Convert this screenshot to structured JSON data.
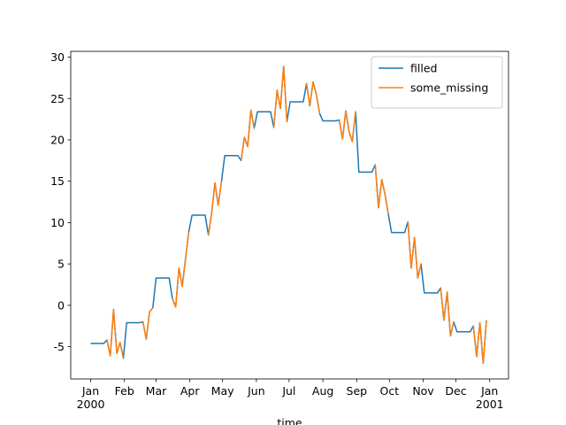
{
  "chart_data": {
    "type": "line",
    "xlabel": "time",
    "x": [
      0,
      3,
      6,
      9,
      12,
      15,
      18,
      21,
      24,
      27,
      30,
      33,
      36,
      39,
      42,
      45,
      48,
      51,
      54,
      57,
      60,
      63,
      66,
      69,
      72,
      75,
      78,
      81,
      84,
      87,
      90,
      93,
      96,
      99,
      102,
      105,
      108,
      111,
      114,
      117,
      120,
      123,
      126,
      129,
      132,
      135,
      138,
      141,
      144,
      147,
      150,
      153,
      156,
      159,
      162,
      165,
      168,
      171,
      174,
      177,
      180,
      183,
      186,
      189,
      192,
      195,
      198,
      201,
      204,
      207,
      210,
      213,
      216,
      219,
      222,
      225,
      228,
      231,
      234,
      237,
      240,
      243,
      246,
      249,
      252,
      255,
      258,
      261,
      264,
      267,
      270,
      273,
      276,
      279,
      282,
      285,
      288,
      291,
      294,
      297,
      300,
      303,
      306,
      309,
      312,
      315,
      318,
      321,
      324,
      327,
      330,
      333,
      336,
      339,
      342,
      345,
      348,
      351,
      354,
      357,
      360,
      363
    ],
    "series": [
      {
        "name": "filled",
        "color": "#1f77b4",
        "values": [
          -4.6,
          -4.6,
          -4.6,
          -4.6,
          -4.6,
          -4.2,
          -6.1,
          -0.5,
          -5.8,
          -4.5,
          -6.4,
          -2.1,
          -2.1,
          -2.1,
          -2.1,
          -2.1,
          -2.0,
          -4.1,
          -0.8,
          -0.3,
          3.3,
          3.3,
          3.3,
          3.3,
          3.3,
          0.8,
          -0.2,
          4.5,
          2.3,
          5.6,
          8.9,
          10.9,
          10.9,
          10.9,
          10.9,
          10.9,
          8.5,
          11.2,
          14.8,
          12.1,
          15.0,
          18.1,
          18.1,
          18.1,
          18.1,
          18.1,
          17.5,
          20.3,
          19.2,
          23.6,
          21.4,
          23.4,
          23.4,
          23.4,
          23.4,
          23.4,
          21.5,
          26.0,
          23.8,
          28.9,
          22.2,
          24.6,
          24.6,
          24.6,
          24.6,
          24.6,
          26.8,
          24.1,
          27.0,
          25.5,
          23.2,
          22.3,
          22.3,
          22.3,
          22.3,
          22.3,
          22.4,
          20.1,
          23.5,
          21.0,
          19.8,
          23.4,
          16.1,
          16.1,
          16.1,
          16.1,
          16.1,
          17.0,
          11.8,
          15.2,
          13.4,
          11.0,
          8.8,
          8.8,
          8.8,
          8.8,
          8.8,
          10.1,
          4.5,
          8.2,
          3.3,
          5.0,
          1.5,
          1.5,
          1.5,
          1.5,
          1.5,
          2.1,
          -1.8,
          1.6,
          -3.7,
          -2.0,
          -3.2,
          -3.2,
          -3.2,
          -3.2,
          -3.2,
          -2.5,
          -6.2,
          -2.1,
          -7.0,
          -1.8
        ]
      },
      {
        "name": "some_missing",
        "color": "#ff7f0e",
        "values": [
          null,
          null,
          null,
          null,
          null,
          -4.2,
          -6.1,
          -0.5,
          -5.8,
          -4.5,
          -6.4,
          null,
          null,
          null,
          null,
          null,
          -2.0,
          -4.1,
          -0.8,
          -0.3,
          null,
          null,
          null,
          null,
          null,
          0.8,
          -0.2,
          4.5,
          2.3,
          5.6,
          8.9,
          null,
          null,
          null,
          null,
          null,
          8.5,
          11.2,
          14.8,
          12.1,
          15.0,
          null,
          null,
          null,
          null,
          null,
          17.5,
          20.3,
          19.2,
          23.6,
          21.4,
          null,
          null,
          null,
          null,
          null,
          21.5,
          26.0,
          23.8,
          28.9,
          22.2,
          null,
          null,
          null,
          null,
          null,
          26.8,
          24.1,
          27.0,
          25.5,
          23.2,
          null,
          null,
          null,
          null,
          null,
          22.4,
          20.1,
          23.5,
          21.0,
          19.8,
          23.4,
          null,
          null,
          null,
          null,
          null,
          17.0,
          11.8,
          15.2,
          13.4,
          11.0,
          null,
          null,
          null,
          null,
          null,
          10.1,
          4.5,
          8.2,
          3.3,
          5.0,
          null,
          null,
          null,
          null,
          null,
          2.1,
          -1.8,
          1.6,
          -3.7,
          -2.0,
          null,
          null,
          null,
          null,
          null,
          -2.5,
          -6.2,
          -2.1,
          -7.0,
          -1.8
        ]
      }
    ],
    "xlim": [
      -18.25,
      383.25
    ],
    "xticks": [
      {
        "value": 0,
        "label": "Jan\n2000"
      },
      {
        "value": 31,
        "label": "Feb"
      },
      {
        "value": 60,
        "label": "Mar"
      },
      {
        "value": 91,
        "label": "Apr"
      },
      {
        "value": 121,
        "label": "May"
      },
      {
        "value": 152,
        "label": "Jun"
      },
      {
        "value": 182,
        "label": "Jul"
      },
      {
        "value": 213,
        "label": "Aug"
      },
      {
        "value": 244,
        "label": "Sep"
      },
      {
        "value": 274,
        "label": "Oct"
      },
      {
        "value": 305,
        "label": "Nov"
      },
      {
        "value": 335,
        "label": "Dec"
      },
      {
        "value": 366,
        "label": "Jan\n2001"
      }
    ],
    "ylim": [
      -8.9,
      30.7
    ],
    "yticks": [
      -5,
      0,
      5,
      10,
      15,
      20,
      25,
      30
    ],
    "legend": "upper right"
  }
}
